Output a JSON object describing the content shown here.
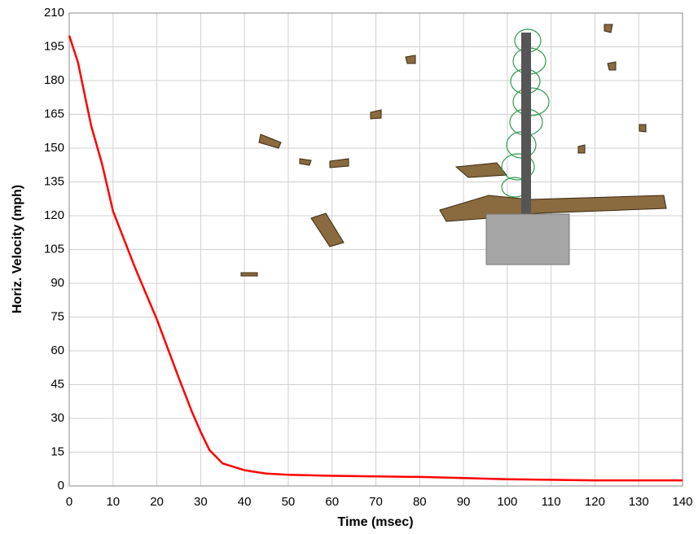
{
  "chart_data": {
    "type": "line",
    "xlabel": "Time (msec)",
    "ylabel": "Horiz. Velocity (mph)",
    "x": [
      0,
      2,
      5,
      7.5,
      10,
      15,
      20,
      25,
      28,
      30,
      32,
      35,
      40,
      45,
      50,
      60,
      80,
      90,
      100,
      120,
      140
    ],
    "values": [
      200,
      188,
      160,
      143,
      122,
      97,
      74,
      48,
      33,
      24,
      16,
      10,
      7,
      5.5,
      5,
      4.5,
      4,
      3.5,
      3,
      2.5,
      2.5
    ],
    "color": "#ff0000",
    "xlim": [
      0,
      140
    ],
    "xticks": [
      0,
      10,
      20,
      30,
      40,
      50,
      60,
      70,
      80,
      90,
      100,
      110,
      120,
      130,
      140
    ],
    "ylim": [
      0,
      210
    ],
    "yticks": [
      0,
      15,
      30,
      45,
      60,
      75,
      90,
      105,
      120,
      135,
      150,
      165,
      180,
      195,
      210
    ],
    "grid": true
  }
}
